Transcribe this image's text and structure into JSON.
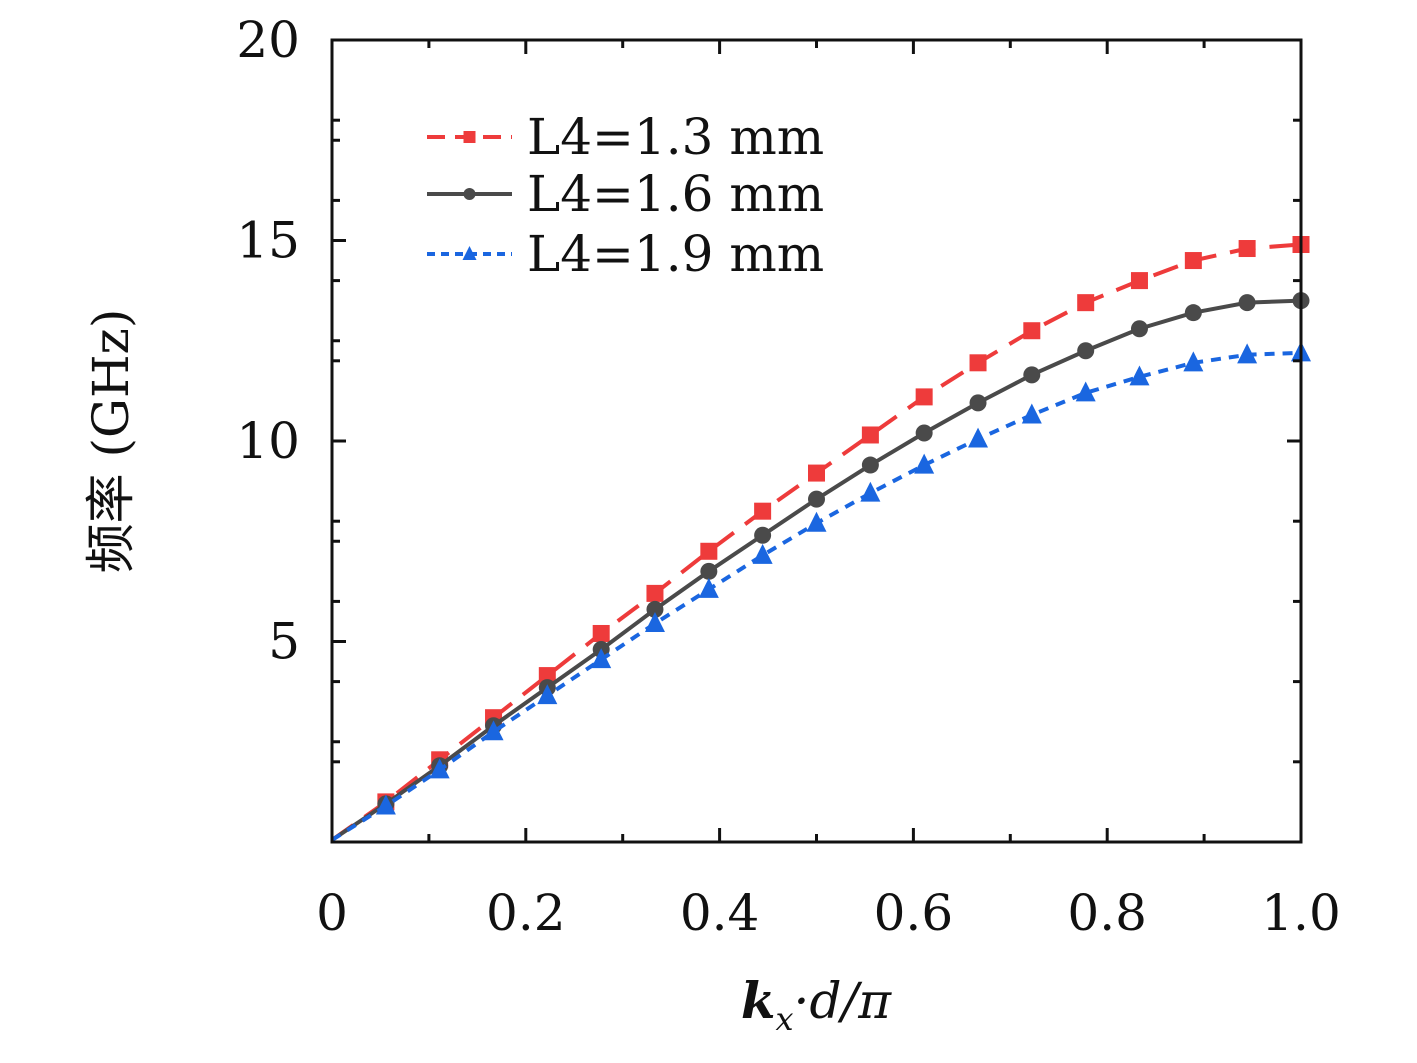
{
  "chart_data": {
    "type": "line",
    "title": "",
    "xlabel": {
      "k": "k",
      "sub": "x",
      "rest": "·d/π"
    },
    "ylabel": "频率 (GHz)",
    "xlim": [
      0,
      1.0
    ],
    "ylim": [
      0,
      20
    ],
    "xticks": [
      "0",
      "0.2",
      "0.4",
      "0.6",
      "0.8",
      "1.0"
    ],
    "yticks": [
      "5",
      "10",
      "15",
      "20"
    ],
    "grid": false,
    "legend_position": "top-left",
    "x": [
      0,
      0.0556,
      0.1111,
      0.1667,
      0.2222,
      0.2778,
      0.3333,
      0.3889,
      0.4444,
      0.5,
      0.5556,
      0.6111,
      0.6667,
      0.7222,
      0.7778,
      0.8333,
      0.8889,
      0.9444,
      1.0
    ],
    "series": [
      {
        "name": "L4=1.3 mm",
        "color": "#ee3b3b",
        "line": "dashed",
        "marker": "square",
        "values": [
          0.05,
          1.0,
          2.05,
          3.1,
          4.15,
          5.2,
          6.2,
          7.25,
          8.25,
          9.2,
          10.15,
          11.1,
          11.95,
          12.75,
          13.45,
          14.0,
          14.5,
          14.8,
          14.9
        ]
      },
      {
        "name": "L4=1.6 mm",
        "color": "#4a4a4a",
        "line": "solid",
        "marker": "circle",
        "values": [
          0.05,
          0.95,
          1.9,
          2.9,
          3.85,
          4.8,
          5.8,
          6.75,
          7.65,
          8.55,
          9.4,
          10.2,
          10.95,
          11.65,
          12.25,
          12.8,
          13.2,
          13.45,
          13.5
        ]
      },
      {
        "name": "L4=1.9 mm",
        "color": "#1a66e0",
        "line": "dotted",
        "marker": "triangle",
        "values": [
          0.05,
          0.9,
          1.8,
          2.75,
          3.65,
          4.55,
          5.45,
          6.3,
          7.15,
          7.95,
          8.7,
          9.4,
          10.05,
          10.65,
          11.2,
          11.6,
          11.95,
          12.15,
          12.2
        ]
      }
    ]
  }
}
